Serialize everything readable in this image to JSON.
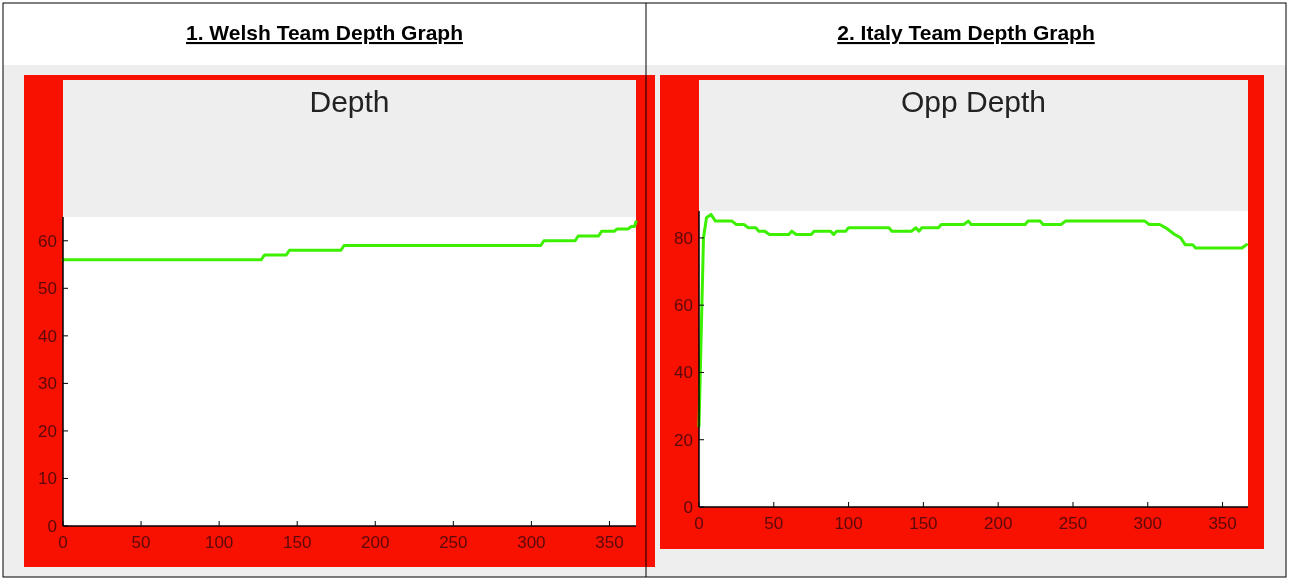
{
  "chart_data": [
    {
      "type": "line",
      "title": "1. Welsh Team Depth Graph",
      "subtitle": "Depth",
      "xlim": [
        0,
        367
      ],
      "ylim": [
        0,
        65
      ],
      "xticks": [
        0,
        50,
        100,
        150,
        200,
        250,
        300,
        350
      ],
      "yticks": [
        0,
        10,
        20,
        30,
        40,
        50,
        60
      ],
      "grid": false,
      "marker": "none",
      "line_style": "solid",
      "series": [
        {
          "color": "#3cf000",
          "x": [
            0,
            127,
            129,
            143,
            145,
            178,
            180,
            306,
            308,
            328,
            330,
            343,
            345,
            353,
            355,
            362,
            364,
            366,
            367
          ],
          "values": [
            56,
            56,
            57,
            57,
            58,
            58,
            59,
            59,
            60,
            60,
            61,
            61,
            62,
            62,
            62.5,
            62.5,
            63,
            63,
            64
          ]
        }
      ]
    },
    {
      "type": "line",
      "title": "2. Italy Team Depth Graph",
      "subtitle": "Opp Depth",
      "xlim": [
        0,
        367
      ],
      "ylim": [
        0,
        88
      ],
      "xticks": [
        0,
        50,
        100,
        150,
        200,
        250,
        300,
        350
      ],
      "yticks": [
        0,
        20,
        40,
        60,
        80
      ],
      "grid": false,
      "marker": "none",
      "line_style": "solid",
      "series": [
        {
          "color": "#3cf000",
          "x": [
            0,
            3,
            5,
            8,
            11,
            22,
            25,
            30,
            33,
            38,
            40,
            44,
            47,
            60,
            62,
            65,
            75,
            77,
            88,
            90,
            92,
            98,
            100,
            127,
            129,
            142,
            145,
            147,
            149,
            160,
            162,
            177,
            180,
            182,
            218,
            220,
            228,
            230,
            242,
            245,
            298,
            301,
            308,
            312,
            318,
            322,
            325,
            330,
            332,
            363,
            366
          ],
          "values": [
            24,
            80,
            86,
            87,
            85,
            85,
            84,
            84,
            83,
            83,
            82,
            82,
            81,
            81,
            82,
            81,
            81,
            82,
            82,
            81,
            82,
            82,
            83,
            83,
            82,
            82,
            83,
            82,
            83,
            83,
            84,
            84,
            85,
            84,
            84,
            85,
            85,
            84,
            84,
            85,
            85,
            84,
            84,
            83,
            81,
            80,
            78,
            78,
            77,
            77,
            78
          ]
        }
      ]
    }
  ]
}
